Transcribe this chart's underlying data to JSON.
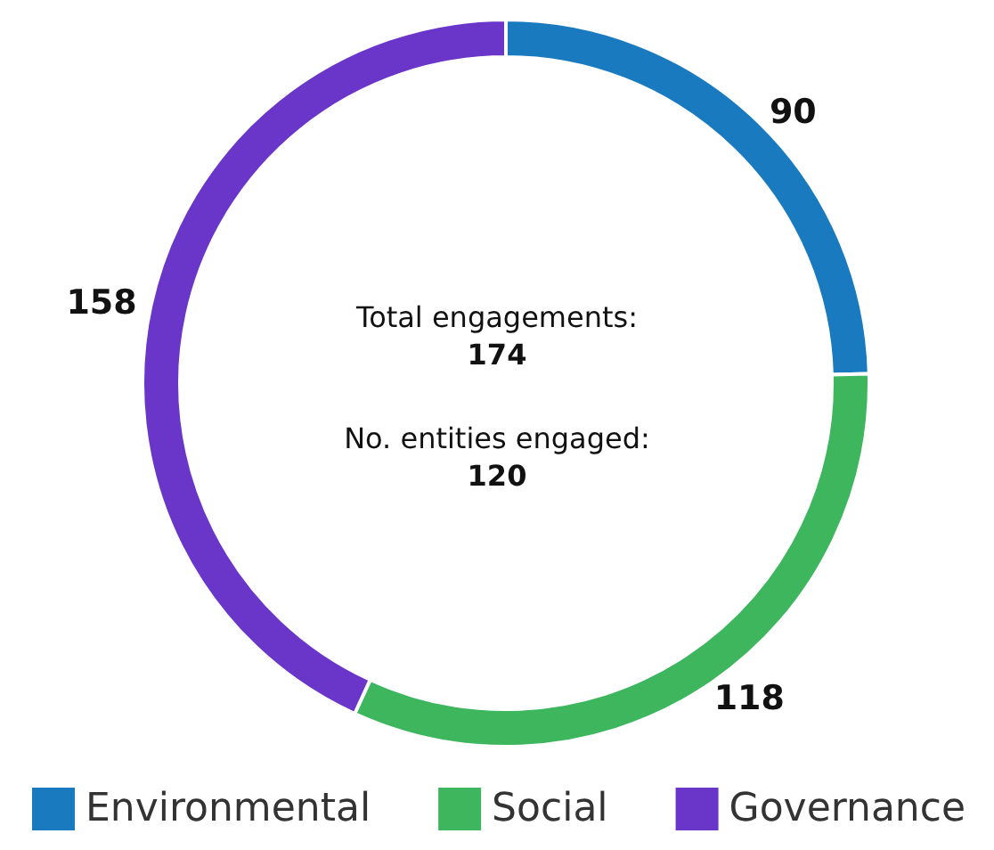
{
  "chart_data": {
    "type": "donut",
    "categories": [
      "Environmental",
      "Social",
      "Governance"
    ],
    "values": [
      90,
      118,
      158
    ],
    "colors": [
      "#1a7abf",
      "#3db65e",
      "#6a35c9"
    ],
    "data_labels": true,
    "legend": "bottom",
    "annotations": [
      "Total engagements:",
      "174",
      "No. entities engaged:",
      "120"
    ]
  }
}
